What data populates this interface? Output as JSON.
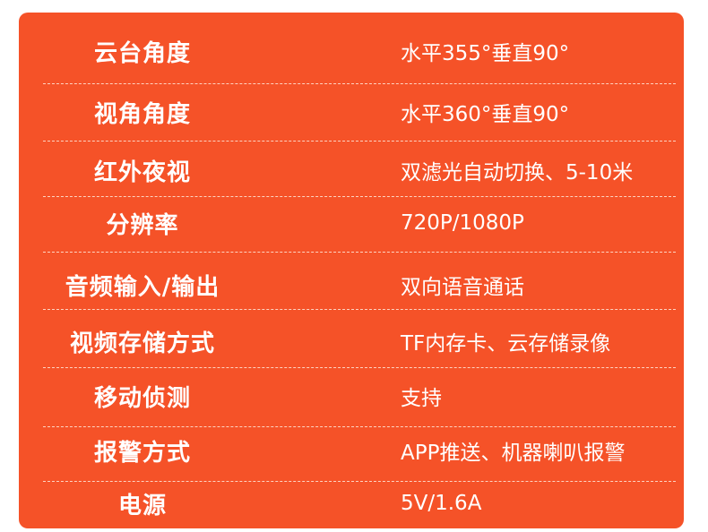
{
  "accent_color": "#F55228",
  "specs": [
    {
      "label": "云台角度",
      "value": "水平355°垂直90°"
    },
    {
      "label": "视角角度",
      "value": "水平360°垂直90°"
    },
    {
      "label": "红外夜视",
      "value": "双滤光自动切换、5-10米"
    },
    {
      "label": "分辨率",
      "value": "720P/1080P"
    },
    {
      "label": "音频输入/输出",
      "value": "双向语音通话"
    },
    {
      "label": "视频存储方式",
      "value": "TF内存卡、云存储录像"
    },
    {
      "label": "移动侦测",
      "value": "支持"
    },
    {
      "label": "报警方式",
      "value": "APP推送、机器喇叭报警"
    },
    {
      "label": "电源",
      "value": "5V/1.6A"
    }
  ]
}
